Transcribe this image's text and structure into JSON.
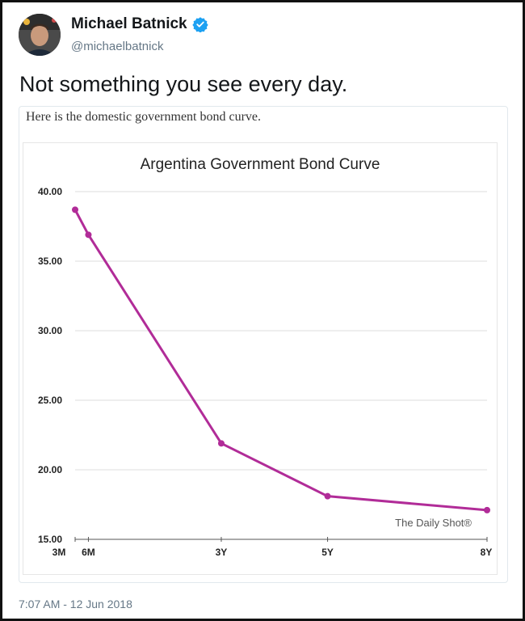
{
  "author": {
    "name": "Michael Batnick",
    "handle": "@michaelbatnick",
    "avatar_icon": "user-avatar",
    "verified_icon": "verified-badge-icon"
  },
  "tweet": {
    "text": "Not something you see every day.",
    "timestamp": "7:07 AM - 12 Jun 2018"
  },
  "media": {
    "caption": "Here is the domestic government bond curve."
  },
  "colors": {
    "line": "#b12c98",
    "verified": "#1da1f2",
    "grid": "#dddddd"
  },
  "chart_data": {
    "type": "line",
    "title": "Argentina Government Bond Curve",
    "watermark": "The Daily Shot®",
    "x": [
      "3M",
      "6M",
      "3Y",
      "5Y",
      "8Y"
    ],
    "x_years": [
      0.25,
      0.5,
      3,
      5,
      8
    ],
    "series": [
      {
        "values": [
          38.7,
          36.9,
          21.9,
          18.1,
          17.1
        ]
      }
    ],
    "yticks": [
      "15.00",
      "20.00",
      "25.00",
      "30.00",
      "35.00",
      "40.00"
    ],
    "ylim": [
      15,
      40
    ],
    "grid": true
  }
}
